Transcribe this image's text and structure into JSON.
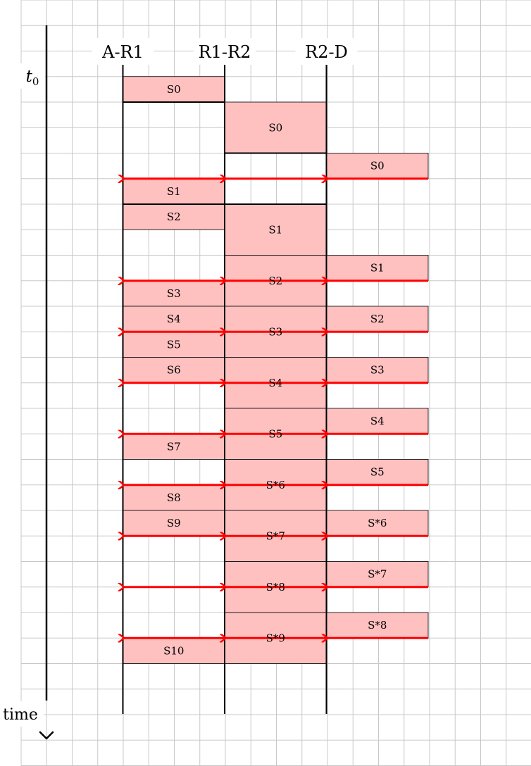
{
  "axis": {
    "t0_label": "t",
    "t0_sub": "0",
    "time_label": "time"
  },
  "columns": [
    {
      "id": "a-r1",
      "label": "A-R1"
    },
    {
      "id": "r1-r2",
      "label": "R1-R2"
    },
    {
      "id": "r2-d",
      "label": "R2-D"
    }
  ],
  "colors": {
    "block_fill": "#ffc0c0",
    "arrow": "#ff0000",
    "grid": "#c8c8c8",
    "line": "#000000"
  },
  "blocks": [
    {
      "col": 0,
      "start": 3,
      "end": 4,
      "label": "S0",
      "label_pos": "center"
    },
    {
      "col": 1,
      "start": 4,
      "end": 6,
      "label": "S0",
      "label_pos": "center"
    },
    {
      "col": 2,
      "start": 6,
      "end": 7,
      "label": "S0",
      "label_pos": "center"
    },
    {
      "col": 0,
      "start": 7,
      "end": 8,
      "label": "S1",
      "label_pos": "center"
    },
    {
      "col": 0,
      "start": 8,
      "end": 9,
      "label": "S2",
      "label_pos": "center"
    },
    {
      "col": 1,
      "start": 8,
      "end": 10,
      "label": "S1",
      "label_pos": "center"
    },
    {
      "col": 1,
      "start": 10,
      "end": 12,
      "label": "S2",
      "label_pos": "center"
    },
    {
      "col": 2,
      "start": 10,
      "end": 11,
      "label": "S1",
      "label_pos": "center"
    },
    {
      "col": 0,
      "start": 11,
      "end": 12,
      "label": "S3",
      "label_pos": "center"
    },
    {
      "col": 0,
      "start": 12,
      "end": 13,
      "label": "S4",
      "label_pos": "center"
    },
    {
      "col": 1,
      "start": 12,
      "end": 14,
      "label": "S3",
      "label_pos": "center"
    },
    {
      "col": 2,
      "start": 12,
      "end": 13,
      "label": "S2",
      "label_pos": "center"
    },
    {
      "col": 0,
      "start": 13,
      "end": 14,
      "label": "S5",
      "label_pos": "center"
    },
    {
      "col": 0,
      "start": 14,
      "end": 15,
      "label": "S6",
      "label_pos": "center"
    },
    {
      "col": 1,
      "start": 14,
      "end": 16,
      "label": "S4",
      "label_pos": "center"
    },
    {
      "col": 2,
      "start": 14,
      "end": 15,
      "label": "S3",
      "label_pos": "center"
    },
    {
      "col": 1,
      "start": 16,
      "end": 18,
      "label": "S5",
      "label_pos": "center"
    },
    {
      "col": 2,
      "start": 16,
      "end": 17,
      "label": "S4",
      "label_pos": "center"
    },
    {
      "col": 0,
      "start": 17,
      "end": 18,
      "label": "S7",
      "label_pos": "center"
    },
    {
      "col": 1,
      "start": 18,
      "end": 20,
      "label": "S*6",
      "label_pos": "center"
    },
    {
      "col": 2,
      "start": 18,
      "end": 19,
      "label": "S5",
      "label_pos": "center"
    },
    {
      "col": 0,
      "start": 19,
      "end": 20,
      "label": "S8",
      "label_pos": "center"
    },
    {
      "col": 0,
      "start": 20,
      "end": 21,
      "label": "S9",
      "label_pos": "center"
    },
    {
      "col": 1,
      "start": 20,
      "end": 22,
      "label": "S*7",
      "label_pos": "center"
    },
    {
      "col": 2,
      "start": 20,
      "end": 21,
      "label": "S*6",
      "label_pos": "center"
    },
    {
      "col": 1,
      "start": 22,
      "end": 24,
      "label": "S*8",
      "label_pos": "center"
    },
    {
      "col": 2,
      "start": 22,
      "end": 23,
      "label": "S*7",
      "label_pos": "center"
    },
    {
      "col": 1,
      "start": 24,
      "end": 26,
      "label": "S*9",
      "label_pos": "center"
    },
    {
      "col": 2,
      "start": 24,
      "end": 25,
      "label": "S*8",
      "label_pos": "center"
    },
    {
      "col": 0,
      "start": 25,
      "end": 26,
      "label": "S10",
      "label_pos": "center"
    }
  ],
  "arrows": [
    {
      "t": 7,
      "from_col": 3,
      "to_col": 0
    },
    {
      "t": 11,
      "from_col": 3,
      "to_col": 0
    },
    {
      "t": 13,
      "from_col": 3,
      "to_col": 0
    },
    {
      "t": 15,
      "from_col": 3,
      "to_col": 0
    },
    {
      "t": 17,
      "from_col": 3,
      "to_col": 0
    },
    {
      "t": 19,
      "from_col": 3,
      "to_col": 0
    },
    {
      "t": 21,
      "from_col": 3,
      "to_col": 0
    },
    {
      "t": 23,
      "from_col": 3,
      "to_col": 0
    },
    {
      "t": 25,
      "from_col": 3,
      "to_col": 0
    }
  ],
  "dividers": [
    {
      "t": 4,
      "from_col": 0,
      "to_col": 1
    },
    {
      "t": 6,
      "from_col": 1,
      "to_col": 2
    },
    {
      "t": 8,
      "from_col": 0,
      "to_col": 2
    },
    {
      "t": 17,
      "from_col": 0,
      "to_col": 1
    }
  ]
}
